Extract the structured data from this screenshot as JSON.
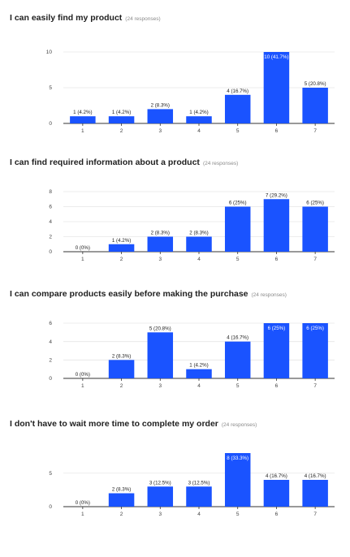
{
  "chart_data": [
    {
      "type": "bar",
      "title": "I can easily find my product",
      "responses": "(24 responses)",
      "categories": [
        "1",
        "2",
        "3",
        "4",
        "5",
        "6",
        "7"
      ],
      "values": [
        1,
        1,
        2,
        1,
        4,
        10,
        5
      ],
      "labels": [
        "1 (4.2%)",
        "1 (4.2%)",
        "2 (8.3%)",
        "1 (4.2%)",
        "4 (16.7%)",
        "10 (41.7%)",
        "5 (20.8%)"
      ],
      "yticks": [
        0,
        5,
        10
      ],
      "ylim": [
        0,
        10
      ],
      "color": "#1a53ff",
      "grid": true
    },
    {
      "type": "bar",
      "title": "I can find required information about a product",
      "responses": "(24 responses)",
      "categories": [
        "1",
        "2",
        "3",
        "4",
        "5",
        "6",
        "7"
      ],
      "values": [
        0,
        1,
        2,
        2,
        6,
        7,
        6
      ],
      "labels": [
        "0 (0%)",
        "1 (4.2%)",
        "2 (8.3%)",
        "2 (8.3%)",
        "6 (25%)",
        "7 (29.2%)",
        "6 (25%)"
      ],
      "yticks": [
        0,
        2,
        4,
        6,
        8
      ],
      "ylim": [
        0,
        8
      ],
      "color": "#1a53ff",
      "grid": true
    },
    {
      "type": "bar",
      "title": "I can compare products easily before making the purchase",
      "responses": "(24 responses)",
      "categories": [
        "1",
        "2",
        "3",
        "4",
        "5",
        "6",
        "7"
      ],
      "values": [
        0,
        2,
        5,
        1,
        4,
        6,
        6
      ],
      "labels": [
        "0 (0%)",
        "2 (8.3%)",
        "5 (20.8%)",
        "1 (4.2%)",
        "4 (16.7%)",
        "6 (25%)",
        "6 (25%)"
      ],
      "yticks": [
        0,
        2,
        4,
        6
      ],
      "ylim": [
        0,
        6
      ],
      "color": "#1a53ff",
      "grid": true
    },
    {
      "type": "bar",
      "title": "I don't have to wait more time to complete my order",
      "responses": "(24 responses)",
      "categories": [
        "1",
        "2",
        "3",
        "4",
        "5",
        "6",
        "7"
      ],
      "values": [
        0,
        2,
        3,
        3,
        8,
        4,
        4
      ],
      "labels": [
        "0 (0%)",
        "2 (8.3%)",
        "3 (12.5%)",
        "3 (12.5%)",
        "8 (33.3%)",
        "4 (16.7%)",
        "4 (16.7%)"
      ],
      "yticks": [
        0,
        5
      ],
      "ylim": [
        0,
        8
      ],
      "color": "#1a53ff",
      "grid": true
    }
  ]
}
